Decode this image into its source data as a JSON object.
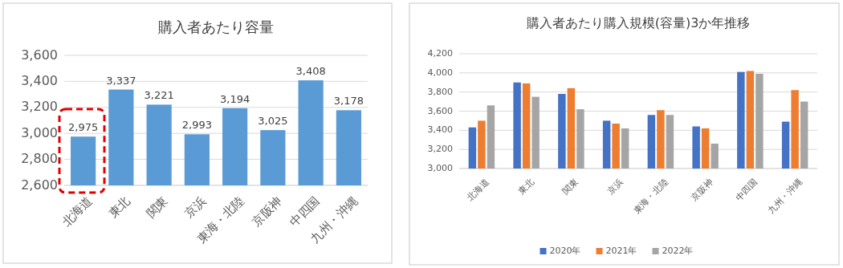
{
  "chart_data": [
    {
      "type": "bar",
      "title": "購入者あたり容量",
      "categories": [
        "北海道",
        "東北",
        "関東",
        "京浜",
        "東海・北陸",
        "京阪神",
        "中四国",
        "九州・沖縄"
      ],
      "values": [
        2975,
        3337,
        3221,
        2993,
        3194,
        3025,
        3408,
        3178
      ],
      "value_labels": [
        "2,975",
        "3,337",
        "3,221",
        "2,993",
        "3,194",
        "3,025",
        "3,408",
        "3,178"
      ],
      "color": "#5b9bd5",
      "ylim": [
        2600,
        3600
      ],
      "yticks": [
        {
          "value": 2600,
          "label": "2,600"
        },
        {
          "value": 2800,
          "label": "2,800"
        },
        {
          "value": 3000,
          "label": "3,000"
        },
        {
          "value": 3200,
          "label": "3,200"
        },
        {
          "value": 3400,
          "label": "3,400"
        },
        {
          "value": 3600,
          "label": "3,600"
        }
      ],
      "grid": "y"
    },
    {
      "type": "bar",
      "title": "購入者あたり購入規模(容量)3か年推移",
      "categories": [
        "北海道",
        "東北",
        "関東",
        "京浜",
        "東海・北陸",
        "京阪神",
        "中四国",
        "九州・沖縄"
      ],
      "series": [
        {
          "name": "2020年",
          "color": "#4472c4",
          "values": [
            3430,
            3900,
            3780,
            3500,
            3560,
            3440,
            4010,
            3490
          ]
        },
        {
          "name": "2021年",
          "color": "#ed7d31",
          "values": [
            3500,
            3890,
            3840,
            3470,
            3610,
            3420,
            4020,
            3820
          ]
        },
        {
          "name": "2022年",
          "color": "#a5a5a5",
          "values": [
            3660,
            3750,
            3620,
            3420,
            3560,
            3260,
            3990,
            3700
          ]
        }
      ],
      "ylim": [
        3000,
        4200
      ],
      "yticks": [
        {
          "value": 3000,
          "label": "3,000"
        },
        {
          "value": 3200,
          "label": "3,200"
        },
        {
          "value": 3400,
          "label": "3,400"
        },
        {
          "value": 3600,
          "label": "3,600"
        },
        {
          "value": 3800,
          "label": "3,800"
        },
        {
          "value": 4000,
          "label": "4,000"
        },
        {
          "value": 4200,
          "label": "4,200"
        }
      ],
      "grid": "y",
      "legend": "bottom"
    }
  ]
}
